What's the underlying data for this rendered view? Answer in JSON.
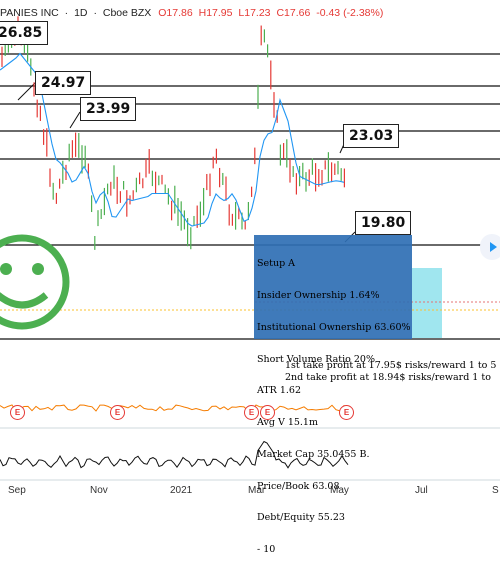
{
  "header": {
    "symbol_name": "PANIES INC",
    "interval": "1D",
    "exchange": "Cboe BZX",
    "open": "O17.86",
    "high": "H17.95",
    "low": "L17.23",
    "close": "C17.66",
    "change": "-0.43 (-2.38%)"
  },
  "price_labels": [
    "26.85",
    "24.97",
    "23.99",
    "23.03",
    "19.80"
  ],
  "info_box": {
    "lines": [
      "Setup A",
      "Insider Ownership 1.64%",
      "Institutional Ownership 63.60%",
      "Short Volume Ratio 20%",
      "ATR 1.62",
      "Avg V 15.1m",
      "Market Cap 35.0455 B.",
      "Price/Book 63.08",
      "Debt/Equity 55.23",
      "- 10"
    ]
  },
  "take_profit": {
    "first": "1st take profit at 17.95$ risks/reward 1 to 5",
    "second": "2nd take profit at 18.94$ risks/reward 1 to"
  },
  "x_axis": [
    "Sep",
    "Nov",
    "2021",
    "Mar",
    "May",
    "Jul",
    "S"
  ],
  "earnings_marker": "E",
  "smiley": {
    "name": "smiley-face-icon",
    "color": "#4caf50"
  },
  "colors": {
    "up": "#4caf50",
    "down": "#e53935",
    "ma": "#2196f3",
    "box": "#2f6fb4",
    "target": "#80deea"
  }
}
